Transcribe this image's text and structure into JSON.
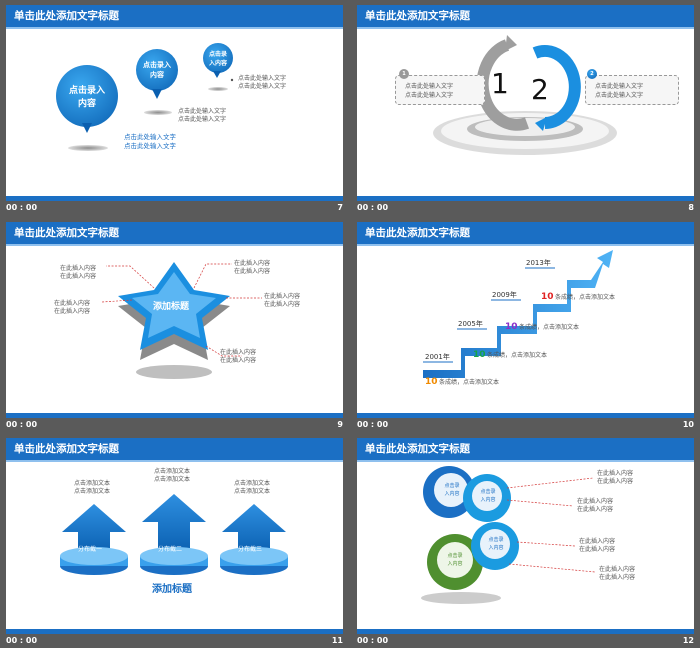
{
  "slide_title": "单击此处添加文字标题",
  "footer_time": "00 : 00",
  "slides": [
    {
      "num": "7",
      "bubbles": [
        "点击录入内容",
        "点击录入内容",
        "点击录入内容"
      ],
      "texts": [
        "点击此处输入文字",
        "点击此处输入文字",
        "点击此处输入文字",
        "点击此处输入文字",
        "点击此处输入文字",
        "点击此处输入文字"
      ]
    },
    {
      "num": "8",
      "numbers": [
        "1",
        "2"
      ],
      "texts": [
        "点击此处输入文字",
        "点击此处输入文字",
        "点击此处输入文字",
        "点击此处输入文字"
      ]
    },
    {
      "num": "9",
      "center": "添加标题",
      "texts": [
        "在此插入内容",
        "在此插入内容",
        "在此插入内容",
        "在此插入内容",
        "在此插入内容",
        "在此插入内容",
        "在此插入内容",
        "在此插入内容",
        "在此插入内容",
        "在此插入内容"
      ]
    },
    {
      "num": "10",
      "years": [
        "2001年",
        "2005年",
        "2009年",
        "2013年"
      ],
      "counts": [
        "10",
        "10",
        "10",
        "10"
      ],
      "texts": [
        "条成绩，点击添加文本",
        "条成绩，点击添加文本",
        "条成绩，点击添加文本",
        "条成绩，点击添加文本"
      ],
      "colors": [
        "#f08a00",
        "#16a34a",
        "#8b2fc9",
        "#e02424"
      ]
    },
    {
      "num": "11",
      "top_texts": [
        "点击添加文本",
        "点击添加文本",
        "点击添加文本",
        "点击添加文本",
        "点击添加文本",
        "点击添加文本"
      ],
      "labels": [
        "分布截一",
        "分布截二",
        "分布截三"
      ],
      "bottom": "添加标题"
    },
    {
      "num": "12",
      "circles": [
        "点击录入内容",
        "点击录入内容",
        "点击录入内容",
        "点击录入内容"
      ],
      "texts": [
        "在此插入内容",
        "在此插入内容",
        "在此插入内容",
        "在此插入内容",
        "在此插入内容",
        "在此插入内容",
        "在此插入内容",
        "在此插入内容"
      ]
    }
  ]
}
